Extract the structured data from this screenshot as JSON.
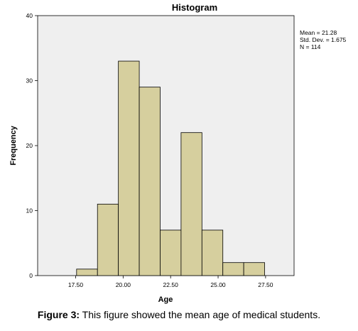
{
  "chart_data": {
    "type": "bar",
    "title": "Histogram",
    "xlabel": "Age",
    "ylabel": "Frequency",
    "bin_width": 1.1,
    "bins": [
      {
        "start": 17.55,
        "end": 18.65,
        "value": 1
      },
      {
        "start": 18.65,
        "end": 19.75,
        "value": 11
      },
      {
        "start": 19.75,
        "end": 20.85,
        "value": 33
      },
      {
        "start": 20.85,
        "end": 21.95,
        "value": 29
      },
      {
        "start": 21.95,
        "end": 23.05,
        "value": 7
      },
      {
        "start": 23.05,
        "end": 24.15,
        "value": 22
      },
      {
        "start": 24.15,
        "end": 25.25,
        "value": 7
      },
      {
        "start": 25.25,
        "end": 26.35,
        "value": 2
      },
      {
        "start": 26.35,
        "end": 27.45,
        "value": 2
      }
    ],
    "xlim": [
      15.5,
      29.0
    ],
    "ylim": [
      0,
      40
    ],
    "x_ticks": [
      "17.50",
      "20.00",
      "22.50",
      "25.00",
      "27.50"
    ],
    "x_tick_values": [
      17.5,
      20.0,
      22.5,
      25.0,
      27.5
    ],
    "y_ticks": [
      "0",
      "10",
      "20",
      "30",
      "40"
    ],
    "y_tick_values": [
      0,
      10,
      20,
      30,
      40
    ],
    "stats": [
      "Mean = 21.28",
      "Std. Dev. = 1.675",
      "N = 114"
    ],
    "grid": false,
    "colors": {
      "bar_fill": "#d6cf9e",
      "bar_stroke": "#000000",
      "plot_bg": "#efefef"
    }
  },
  "caption": {
    "label": "Figure 3:",
    "text": " This figure showed the mean age of medical students."
  }
}
